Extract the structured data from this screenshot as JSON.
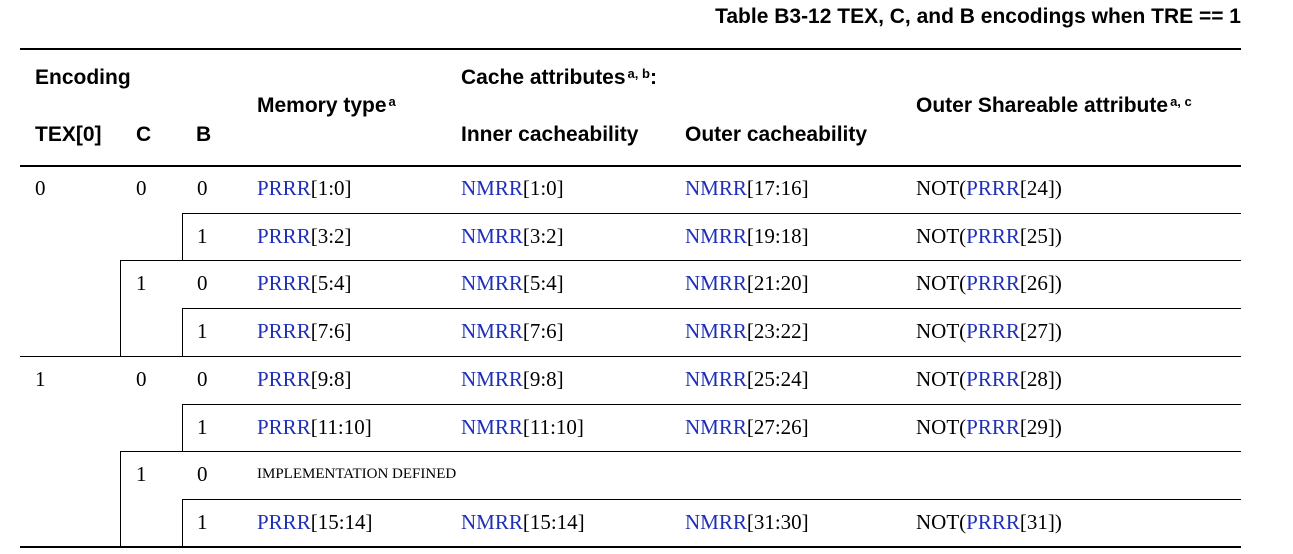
{
  "caption": "Table B3-12 TEX, C, and B encodings when TRE == 1",
  "header": {
    "encoding": "Encoding",
    "tex0": "TEX[0]",
    "c": "C",
    "b": "B",
    "memory_type": "Memory type",
    "memory_type_note": "a",
    "cache_attributes": "Cache attributes",
    "cache_attributes_note": "a, b",
    "cache_attributes_colon": ":",
    "inner_cacheability": "Inner cacheability",
    "outer_cacheability": "Outer cacheability",
    "outer_shareable": "Outer Shareable attribute",
    "outer_shareable_note": "a, c"
  },
  "tex_groups": [
    "0",
    "1"
  ],
  "c_groups": [
    "0",
    "1",
    "0",
    "1"
  ],
  "rows": [
    {
      "b": "0",
      "mem_link": "PRRR",
      "mem_bits": "[1:0]",
      "inner_link": "NMRR",
      "inner_bits": "[1:0]",
      "outer_link": "NMRR",
      "outer_bits": "[17:16]",
      "share_pre": "NOT(",
      "share_link": "PRRR",
      "share_bits": "[24])"
    },
    {
      "b": "1",
      "mem_link": "PRRR",
      "mem_bits": "[3:2]",
      "inner_link": "NMRR",
      "inner_bits": "[3:2]",
      "outer_link": "NMRR",
      "outer_bits": "[19:18]",
      "share_pre": "NOT(",
      "share_link": "PRRR",
      "share_bits": "[25])"
    },
    {
      "b": "0",
      "mem_link": "PRRR",
      "mem_bits": "[5:4]",
      "inner_link": "NMRR",
      "inner_bits": "[5:4]",
      "outer_link": "NMRR",
      "outer_bits": "[21:20]",
      "share_pre": "NOT(",
      "share_link": "PRRR",
      "share_bits": "[26])"
    },
    {
      "b": "1",
      "mem_link": "PRRR",
      "mem_bits": "[7:6]",
      "inner_link": "NMRR",
      "inner_bits": "[7:6]",
      "outer_link": "NMRR",
      "outer_bits": "[23:22]",
      "share_pre": "NOT(",
      "share_link": "PRRR",
      "share_bits": "[27])"
    },
    {
      "b": "0",
      "mem_link": "PRRR",
      "mem_bits": "[9:8]",
      "inner_link": "NMRR",
      "inner_bits": "[9:8]",
      "outer_link": "NMRR",
      "outer_bits": "[25:24]",
      "share_pre": "NOT(",
      "share_link": "PRRR",
      "share_bits": "[28])"
    },
    {
      "b": "1",
      "mem_link": "PRRR",
      "mem_bits": "[11:10]",
      "inner_link": "NMRR",
      "inner_bits": "[11:10]",
      "outer_link": "NMRR",
      "outer_bits": "[27:26]",
      "share_pre": "NOT(",
      "share_link": "PRRR",
      "share_bits": "[29])"
    },
    {
      "b": "0",
      "impl": "IMPLEMENTATION DEFINED"
    },
    {
      "b": "1",
      "mem_link": "PRRR",
      "mem_bits": "[15:14]",
      "inner_link": "NMRR",
      "inner_bits": "[15:14]",
      "outer_link": "NMRR",
      "outer_bits": "[31:30]",
      "share_pre": "NOT(",
      "share_link": "PRRR",
      "share_bits": "[31])"
    }
  ],
  "colors": {
    "link": "#1f2fb8",
    "text": "#000000"
  }
}
